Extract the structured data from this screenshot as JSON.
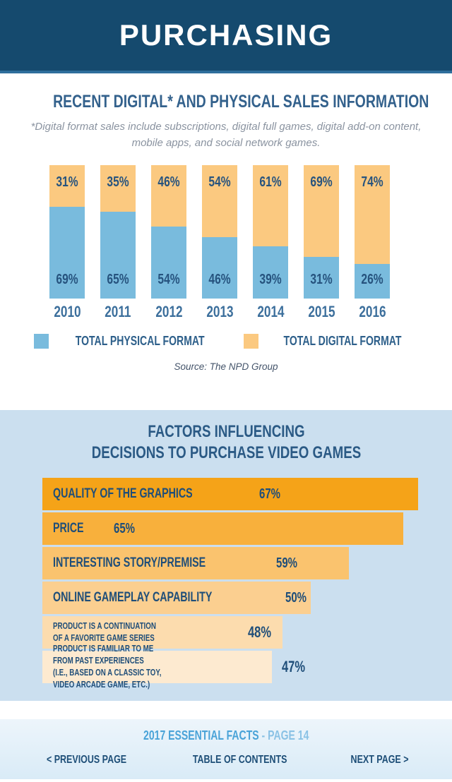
{
  "header": {
    "title": "PURCHASING"
  },
  "sales_section": {
    "title": "RECENT DIGITAL* AND PHYSICAL SALES INFORMATION",
    "subtitle": "*Digital format sales include subscriptions, digital full games, digital add-on content, mobile apps, and social network games.",
    "source": "Source: The NPD Group",
    "legend": [
      {
        "label": "TOTAL PHYSICAL FORMAT",
        "color": "#79bbdd"
      },
      {
        "label": "TOTAL DIGITAL FORMAT",
        "color": "#fbc980"
      }
    ]
  },
  "chart_data": [
    {
      "type": "bar",
      "orientation": "vertical",
      "stacked": true,
      "title": "RECENT DIGITAL* AND PHYSICAL SALES INFORMATION",
      "subtitle": "*Digital format sales include subscriptions, digital full games, digital add-on content, mobile apps, and social network games.",
      "source": "Source: The NPD Group",
      "unit": "%",
      "ylim": [
        0,
        100
      ],
      "legend_position": "bottom",
      "categories": [
        "2010",
        "2011",
        "2012",
        "2013",
        "2014",
        "2015",
        "2016"
      ],
      "series": [
        {
          "name": "TOTAL PHYSICAL FORMAT",
          "color": "#79bbdd",
          "values": [
            69,
            65,
            54,
            46,
            39,
            31,
            26
          ],
          "labels": [
            "69%",
            "65%",
            "54%",
            "46%",
            "39%",
            "31%",
            "26%"
          ]
        },
        {
          "name": "TOTAL DIGITAL FORMAT",
          "color": "#fbc980",
          "values": [
            31,
            35,
            46,
            54,
            61,
            69,
            74
          ],
          "labels": [
            "31%",
            "35%",
            "46%",
            "54%",
            "61%",
            "69%",
            "74%"
          ]
        }
      ]
    },
    {
      "type": "bar",
      "orientation": "horizontal",
      "title": "FACTORS INFLUENCING DECISIONS TO PURCHASE VIDEO GAMES",
      "unit": "%",
      "categories": [
        "QUALITY OF THE GRAPHICS",
        "PRICE",
        "INTERESTING STORY/PREMISE",
        "ONLINE GAMEPLAY CAPABILITY",
        "PRODUCT IS A CONTINUATION OF A FAVORITE GAME SERIES",
        "PRODUCT IS FAMILIAR TO ME FROM PAST EXPERIENCES (I.E., BASED ON A CLASSIC TOY, VIDEO ARCADE GAME, ETC.)"
      ],
      "values": [
        67,
        65,
        59,
        50,
        48,
        47
      ],
      "bar_colors": [
        "#f5a318",
        "#f8b03c",
        "#fac36e",
        "#fbcf90",
        "#fcdcae",
        "#fdead0"
      ]
    }
  ],
  "factors_section": {
    "title_line1": "FACTORS INFLUENCING",
    "title_line2": "DECISIONS TO PURCHASE VIDEO GAMES",
    "bars": [
      {
        "label": "QUALITY OF THE GRAPHICS",
        "value": "67%",
        "width_pct": 100,
        "color": "#f5a318"
      },
      {
        "label": "PRICE",
        "value": "65%",
        "width_pct": 96,
        "color": "#f8b03c"
      },
      {
        "label": "INTERESTING STORY/PREMISE",
        "value": "59%",
        "width_pct": 81.5,
        "color": "#fac36e"
      },
      {
        "label": "ONLINE GAMEPLAY CAPABILITY",
        "value": "50%",
        "width_pct": 71.5,
        "color": "#fbcf90"
      },
      {
        "label_line1": "PRODUCT IS A CONTINUATION",
        "label_line2": "OF A FAVORITE GAME SERIES",
        "value": "48%",
        "width_pct": 64,
        "color": "#fcdcae"
      },
      {
        "label_line1": "PRODUCT IS FAMILIAR TO ME FROM PAST EXPERIENCES",
        "label_line2": "(I.E., BASED ON A CLASSIC TOY, VIDEO ARCADE GAME, ETC.)",
        "value": "47%",
        "width_pct": 61,
        "color": "#fdead0",
        "value_outside": true
      }
    ]
  },
  "footer": {
    "facts_label": "2017 ESSENTIAL FACTS",
    "page_label": " - PAGE 14",
    "prev_label": "< PREVIOUS PAGE",
    "toc_label": "TABLE OF CONTENTS",
    "next_label": "NEXT PAGE >"
  }
}
